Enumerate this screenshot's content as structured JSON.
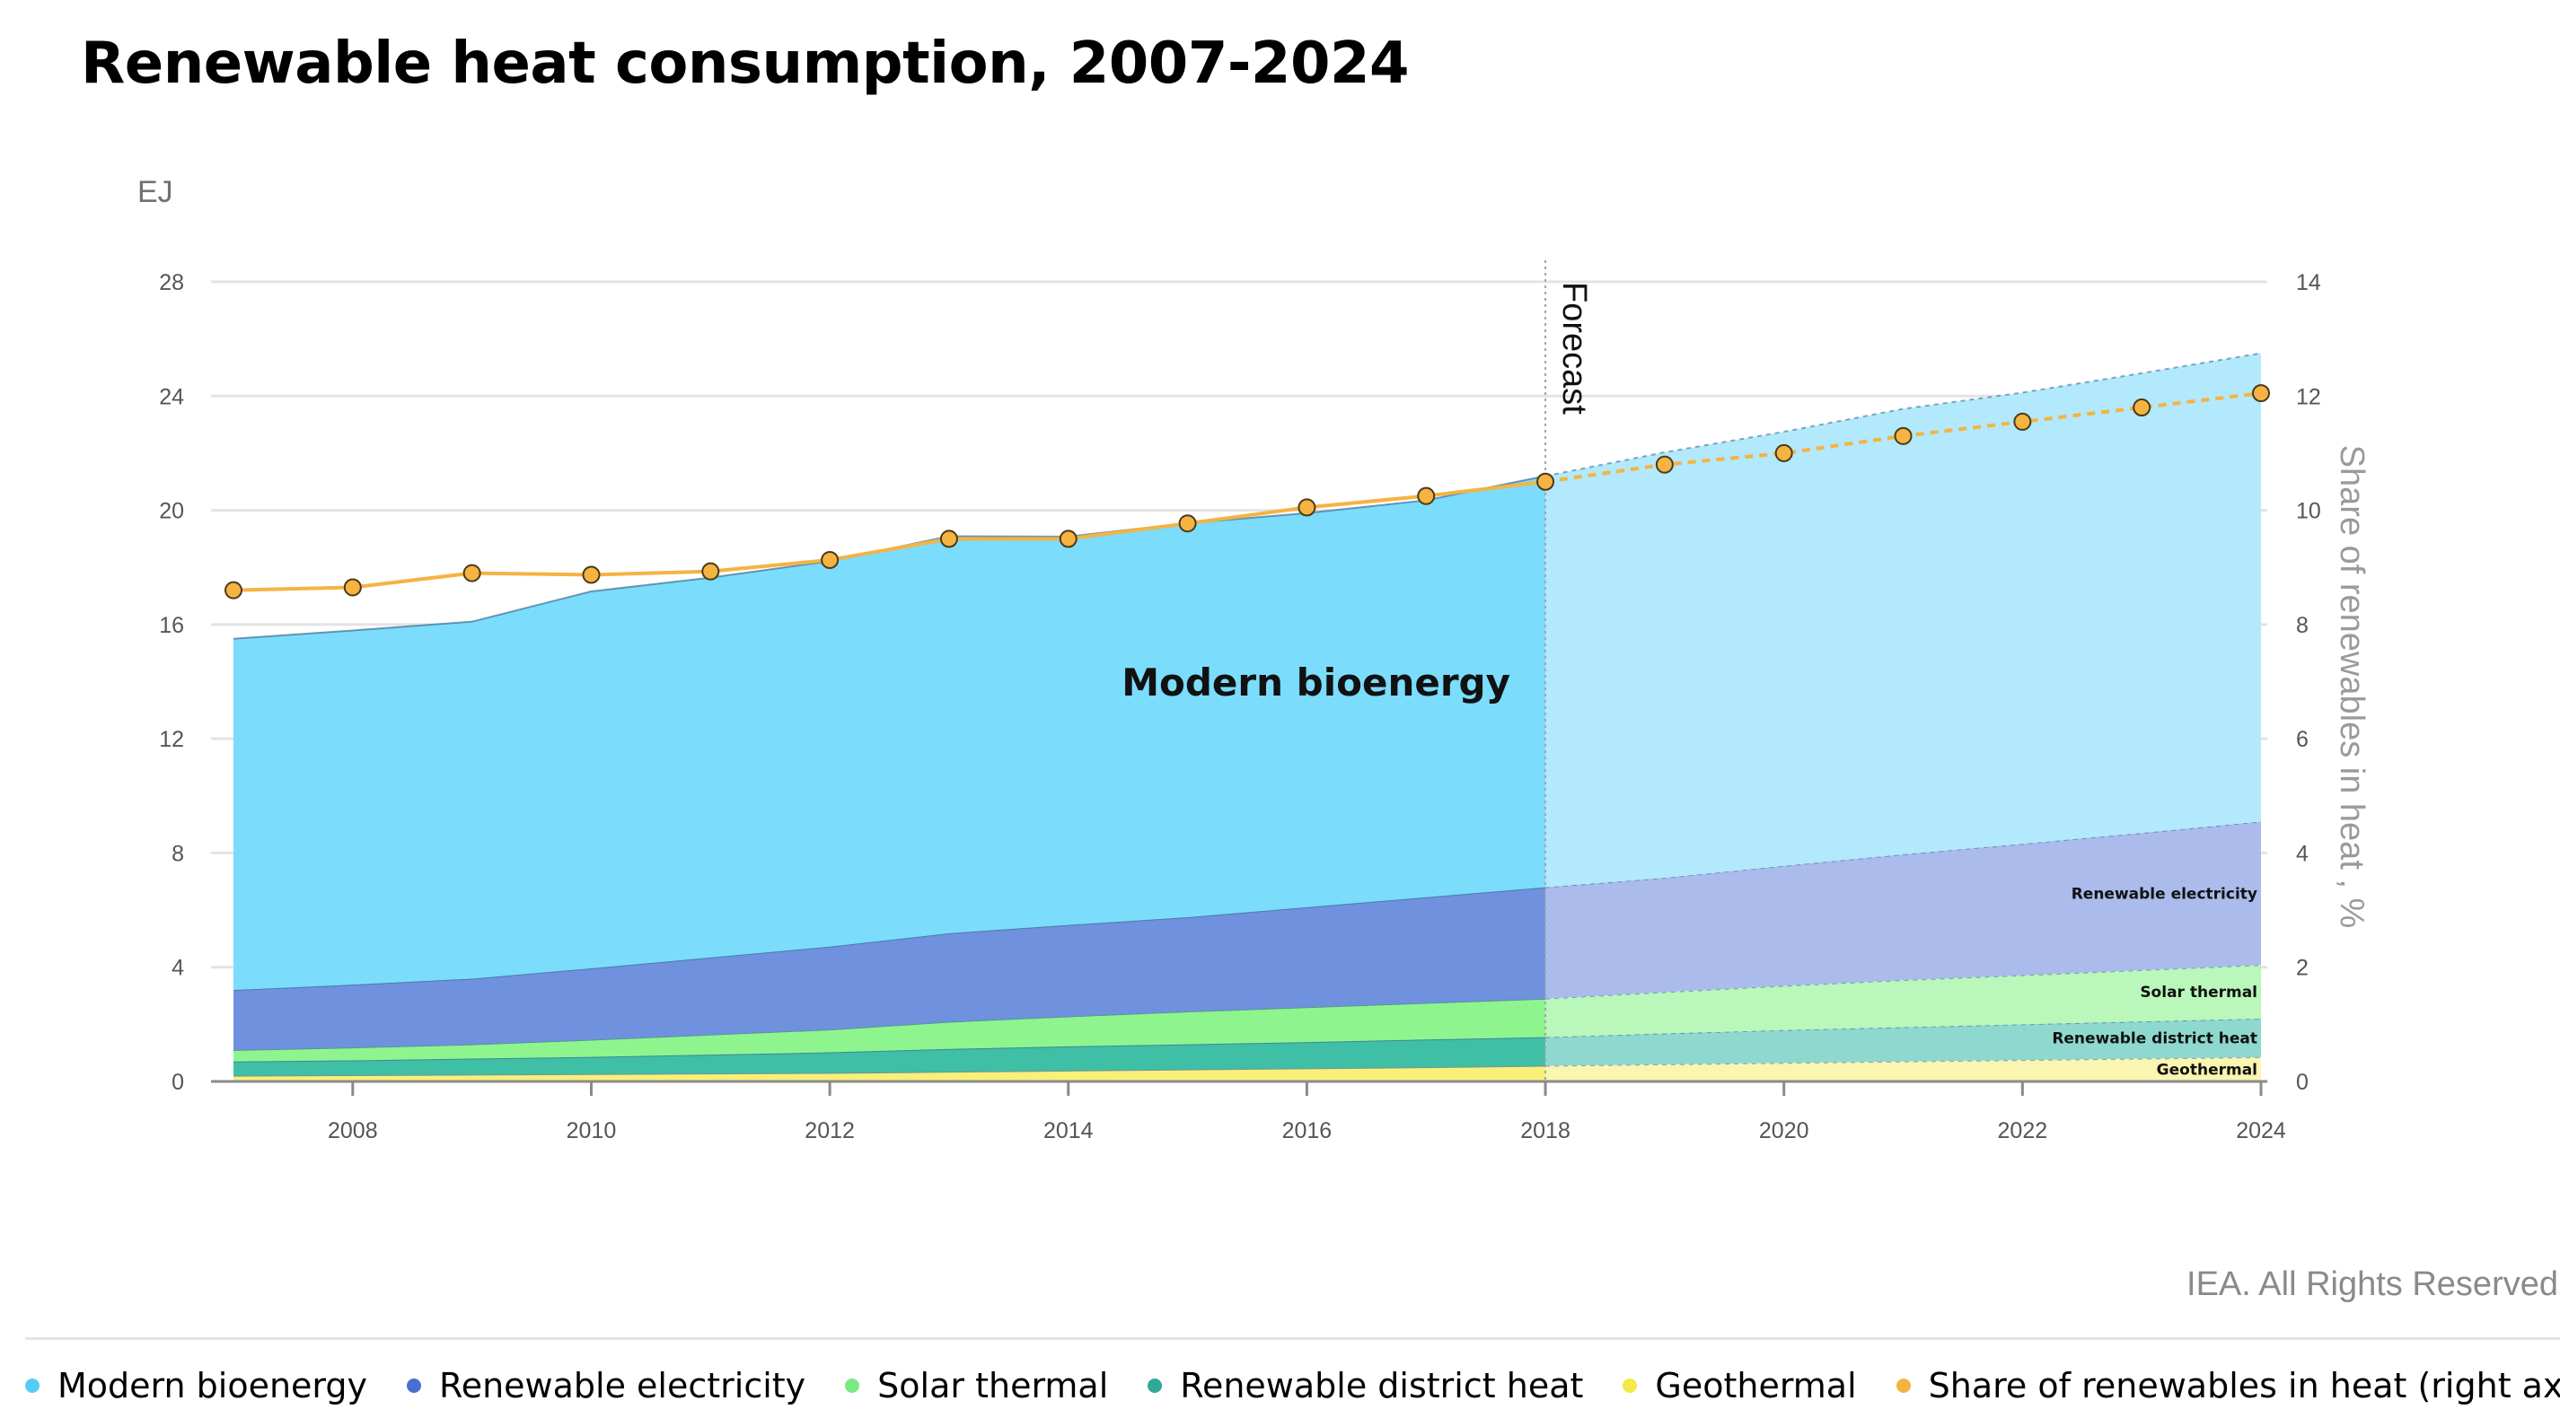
{
  "title": "Renewable heat consumption, 2007-2024",
  "footer": {
    "copyright": "IEA. All Rights Reserved"
  },
  "chart_data": {
    "type": "area",
    "x": [
      2007,
      2008,
      2009,
      2010,
      2011,
      2012,
      2013,
      2014,
      2015,
      2016,
      2017,
      2018,
      2019,
      2020,
      2021,
      2022,
      2023,
      2024
    ],
    "x_tick_labels": [
      "2008",
      "2010",
      "2012",
      "2014",
      "2016",
      "2018",
      "2020",
      "2022",
      "2024"
    ],
    "x_ticks": [
      2008,
      2010,
      2012,
      2014,
      2016,
      2018,
      2020,
      2022,
      2024
    ],
    "forecast_start": 2018,
    "forecast_label": "Forecast",
    "ylabel": "EJ",
    "ylim": [
      0,
      28
    ],
    "y_ticks": [
      0,
      4,
      8,
      12,
      16,
      20,
      24,
      28
    ],
    "y_tick_labels": [
      "0",
      "4",
      "8",
      "12",
      "16",
      "20",
      "24",
      "28"
    ],
    "y2label": "Share of renewables in heat , %",
    "y2lim": [
      0,
      14
    ],
    "y2_ticks": [
      0,
      2,
      4,
      6,
      8,
      10,
      12,
      14
    ],
    "y2_tick_labels": [
      "0",
      "2",
      "4",
      "6",
      "8",
      "10",
      "12",
      "14"
    ],
    "stacked_series": [
      {
        "name": "Geothermal",
        "label": "Geothermal",
        "color": "#f9f07a",
        "forecast_color": "#faf5b0",
        "values": [
          0.2,
          0.22,
          0.24,
          0.26,
          0.28,
          0.3,
          0.34,
          0.38,
          0.42,
          0.46,
          0.5,
          0.55,
          0.6,
          0.65,
          0.7,
          0.75,
          0.8,
          0.85
        ]
      },
      {
        "name": "Renewable district heat",
        "label": "Renewable district heat",
        "color": "#3fbfa5",
        "forecast_color": "#8fd8cf",
        "values": [
          0.5,
          0.52,
          0.56,
          0.6,
          0.66,
          0.72,
          0.8,
          0.85,
          0.88,
          0.92,
          0.97,
          1.0,
          1.08,
          1.15,
          1.2,
          1.25,
          1.3,
          1.35
        ]
      },
      {
        "name": "Solar thermal",
        "label": "Solar thermal",
        "color": "#8ef58e",
        "forecast_color": "#b9f7ba",
        "values": [
          0.4,
          0.45,
          0.5,
          0.6,
          0.7,
          0.8,
          0.95,
          1.05,
          1.15,
          1.22,
          1.28,
          1.35,
          1.45,
          1.55,
          1.65,
          1.72,
          1.8,
          1.88
        ]
      },
      {
        "name": "Renewable electricity",
        "label": "Renewable electricity",
        "color": "#6f91de",
        "forecast_color": "#aabbec",
        "values": [
          2.1,
          2.2,
          2.3,
          2.5,
          2.7,
          2.9,
          3.1,
          3.2,
          3.3,
          3.5,
          3.7,
          3.9,
          4.0,
          4.2,
          4.4,
          4.6,
          4.8,
          5.02
        ]
      },
      {
        "name": "Modern bioenergy",
        "label": "Modern bioenergy",
        "color": "#7bdcfb",
        "forecast_color": "#b2e9fc",
        "values": [
          12.3,
          12.4,
          12.5,
          13.2,
          13.3,
          13.5,
          13.9,
          13.6,
          13.8,
          13.8,
          13.9,
          14.4,
          14.9,
          15.2,
          15.6,
          15.8,
          16.1,
          16.4
        ]
      }
    ],
    "line_series": {
      "name": "Share of renewables in heat (right axis)",
      "axis": "right",
      "color": "#f5b342",
      "values": [
        8.6,
        8.65,
        8.9,
        8.87,
        8.93,
        9.13,
        9.5,
        9.5,
        9.77,
        10.05,
        10.25,
        10.5,
        10.8,
        11.0,
        11.3,
        11.55,
        11.8,
        12.05
      ]
    },
    "annotation": "Modern bioenergy"
  },
  "legend": [
    {
      "label": "Modern bioenergy",
      "color": "#56cbf5"
    },
    {
      "label": "Renewable electricity",
      "color": "#4a6fd0"
    },
    {
      "label": "Solar thermal",
      "color": "#79ea82"
    },
    {
      "label": "Renewable district heat",
      "color": "#2fa996"
    },
    {
      "label": "Geothermal",
      "color": "#f5e84a"
    },
    {
      "label": "Share of renewables in heat (right axis)",
      "color": "#f5b342"
    }
  ]
}
